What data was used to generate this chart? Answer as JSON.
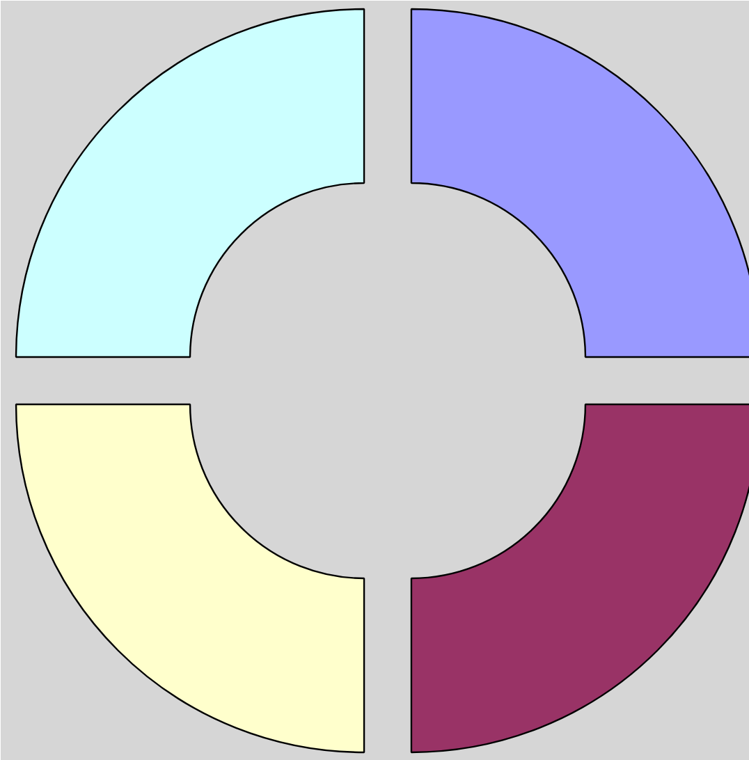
{
  "chart_data": {
    "type": "donut",
    "categories": [
      null,
      null,
      null,
      null
    ],
    "values": [
      25,
      25,
      25,
      25
    ],
    "colors": [
      "#9999ff",
      "#993366",
      "#ffffcc",
      "#ccffff"
    ]
  }
}
